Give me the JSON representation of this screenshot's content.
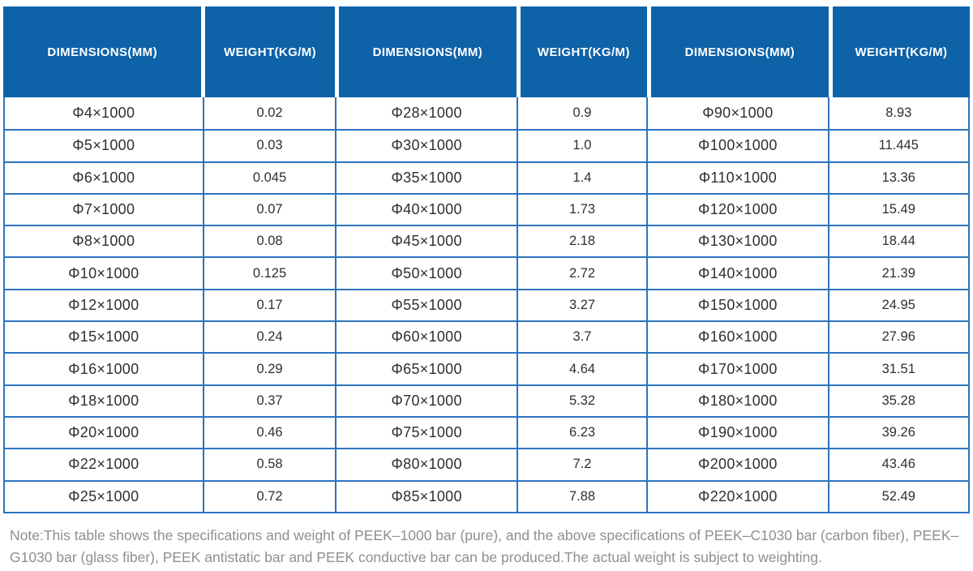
{
  "table": {
    "header": [
      "DIMENSIONS(MM)",
      "WEIGHT(KG/M)",
      "DIMENSIONS(MM)",
      "WEIGHT(KG/M)",
      "DIMENSIONS(MM)",
      "WEIGHT(KG/M)"
    ],
    "rows": [
      [
        "Φ4×1000",
        "0.02",
        "Φ28×1000",
        "0.9",
        "Φ90×1000",
        "8.93"
      ],
      [
        "Φ5×1000",
        "0.03",
        "Φ30×1000",
        "1.0",
        "Φ100×1000",
        "11.445"
      ],
      [
        "Φ6×1000",
        "0.045",
        "Φ35×1000",
        "1.4",
        "Φ110×1000",
        "13.36"
      ],
      [
        "Φ7×1000",
        "0.07",
        "Φ40×1000",
        "1.73",
        "Φ120×1000",
        "15.49"
      ],
      [
        "Φ8×1000",
        "0.08",
        "Φ45×1000",
        "2.18",
        "Φ130×1000",
        "18.44"
      ],
      [
        "Φ10×1000",
        "0.125",
        "Φ50×1000",
        "2.72",
        "Φ140×1000",
        "21.39"
      ],
      [
        "Φ12×1000",
        "0.17",
        "Φ55×1000",
        "3.27",
        "Φ150×1000",
        "24.95"
      ],
      [
        "Φ15×1000",
        "0.24",
        "Φ60×1000",
        "3.7",
        "Φ160×1000",
        "27.96"
      ],
      [
        "Φ16×1000",
        "0.29",
        "Φ65×1000",
        "4.64",
        "Φ170×1000",
        "31.51"
      ],
      [
        "Φ18×1000",
        "0.37",
        "Φ70×1000",
        "5.32",
        "Φ180×1000",
        "35.28"
      ],
      [
        "Φ20×1000",
        "0.46",
        "Φ75×1000",
        "6.23",
        "Φ190×1000",
        "39.26"
      ],
      [
        "Φ22×1000",
        "0.58",
        "Φ80×1000",
        "7.2",
        "Φ200×1000",
        "43.46"
      ],
      [
        "Φ25×1000",
        "0.72",
        "Φ85×1000",
        "7.88",
        "Φ220×1000",
        "52.49"
      ]
    ]
  },
  "note": {
    "text": "Note:This table shows the specifications and weight of PEEK–1000 bar (pure), and the above specifications of PEEK–C1030 bar (carbon fiber), PEEK–G1030 bar (glass fiber), PEEK antistatic bar and PEEK conductive bar can be produced.The actual weight is subject to weighting."
  },
  "colors": {
    "header_bg": "#0e62a8",
    "header_text": "#ffffff",
    "border": "#2b74c0",
    "cell_text": "#2f2f2f",
    "note_text": "#8f8f8f"
  }
}
